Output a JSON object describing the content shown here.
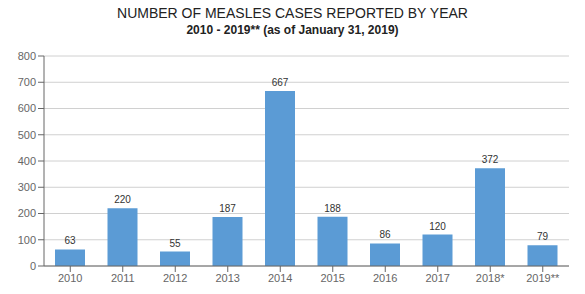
{
  "chart_data": {
    "type": "bar",
    "title": "NUMBER OF MEASLES CASES REPORTED BY YEAR",
    "subtitle": "2010 - 2019** (as of January 31, 2019)",
    "categories": [
      "2010",
      "2011",
      "2012",
      "2013",
      "2014",
      "2015",
      "2016",
      "2017",
      "2018*",
      "2019**"
    ],
    "values": [
      63,
      220,
      55,
      187,
      667,
      188,
      86,
      120,
      372,
      79
    ],
    "color": "#5b9bd5",
    "ylim": [
      0,
      800
    ],
    "yticks": [
      0,
      100,
      200,
      300,
      400,
      500,
      600,
      700,
      800
    ],
    "grid": true,
    "data_labels": true
  }
}
